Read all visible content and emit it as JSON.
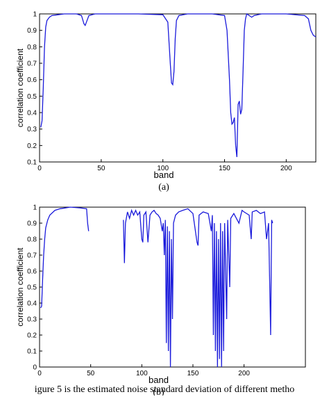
{
  "chart_data": [
    {
      "type": "line",
      "x_label": "band",
      "y_label": "correlation coefficient",
      "panel_label": "(a)",
      "xlim": [
        0,
        224
      ],
      "ylim": [
        0.1,
        1
      ],
      "xticks": [
        0,
        50,
        100,
        150,
        200
      ],
      "yticks": [
        0.1,
        0.2,
        0.3,
        0.4,
        0.5,
        0.6,
        0.7,
        0.8,
        0.9,
        1
      ],
      "x": [
        1,
        2,
        3,
        4,
        5,
        6,
        8,
        10,
        15,
        20,
        30,
        34,
        36,
        37,
        38,
        40,
        45,
        60,
        80,
        100,
        104,
        106,
        107,
        108,
        109,
        110,
        111,
        113,
        120,
        140,
        150,
        152,
        154,
        155,
        156,
        157,
        158,
        159,
        160,
        161,
        162,
        163,
        164,
        165,
        166,
        167,
        168,
        170,
        172,
        174,
        180,
        200,
        215,
        218,
        220,
        222,
        224
      ],
      "series": [
        {
          "color": "#1a1adb",
          "values": [
            0.31,
            0.35,
            0.55,
            0.8,
            0.92,
            0.96,
            0.98,
            0.99,
            0.995,
            1,
            1,
            0.99,
            0.94,
            0.93,
            0.95,
            0.99,
            1,
            1,
            1,
            0.995,
            0.95,
            0.7,
            0.58,
            0.57,
            0.65,
            0.85,
            0.96,
            0.99,
            1,
            1,
            0.99,
            0.9,
            0.6,
            0.4,
            0.33,
            0.34,
            0.37,
            0.2,
            0.13,
            0.45,
            0.47,
            0.39,
            0.42,
            0.65,
            0.9,
            0.97,
            1,
            0.99,
            0.98,
            0.99,
            1,
            1,
            0.99,
            0.97,
            0.9,
            0.87,
            0.86
          ]
        }
      ]
    },
    {
      "type": "line",
      "x_label": "band",
      "y_label": "correlation coefficient",
      "panel_label": "(b)",
      "xlim": [
        0,
        260
      ],
      "ylim": [
        0,
        1
      ],
      "xticks": [
        0,
        50,
        100,
        150,
        200
      ],
      "yticks": [
        0,
        0.1,
        0.2,
        0.3,
        0.4,
        0.5,
        0.6,
        0.7,
        0.8,
        0.9,
        1
      ],
      "x": [
        1,
        2,
        3,
        4,
        5,
        6,
        8,
        10,
        15,
        20,
        30,
        40,
        46,
        47,
        48,
        65,
        82,
        83,
        84,
        86,
        88,
        90,
        92,
        94,
        96,
        98,
        100,
        101,
        102,
        104,
        106,
        108,
        110,
        112,
        114,
        116,
        118,
        120,
        121,
        122,
        123,
        124,
        125,
        126,
        127,
        128,
        129,
        130,
        131,
        133,
        136,
        140,
        145,
        150,
        154,
        155,
        156,
        160,
        165,
        168,
        169,
        170,
        171,
        172,
        173,
        174,
        175,
        176,
        177,
        178,
        179,
        180,
        181,
        183,
        184,
        186,
        187,
        190,
        195,
        198,
        200,
        205,
        207,
        208,
        212,
        216,
        220,
        222,
        224,
        226,
        227,
        228
      ],
      "series": [
        {
          "color": "#1a1adb",
          "values": [
            0.37,
            0.38,
            0.55,
            0.7,
            0.8,
            0.87,
            0.92,
            0.95,
            0.98,
            0.99,
            1,
            0.995,
            0.99,
            0.9,
            0.85,
            null,
            0.92,
            0.65,
            0.9,
            0.97,
            0.93,
            0.98,
            0.95,
            0.98,
            0.95,
            0.97,
            0.8,
            0.78,
            0.95,
            0.97,
            0.78,
            0.95,
            0.97,
            0.98,
            0.96,
            0.95,
            0.93,
            0.85,
            0.9,
            0.7,
            0.92,
            0.15,
            0.88,
            0.1,
            0.85,
            0,
            0.8,
            0.3,
            0.9,
            0.95,
            0.97,
            0.98,
            0.99,
            0.96,
            0.78,
            0.76,
            0.95,
            0.97,
            0.96,
            0.85,
            0.95,
            0.2,
            0.9,
            0.1,
            0.85,
            0,
            0.8,
            0.05,
            0.9,
            0,
            0.85,
            0.1,
            0.9,
            0.3,
            0.92,
            0.5,
            0.93,
            0.96,
            0.9,
            0.98,
            0.97,
            0.95,
            0.8,
            0.97,
            0.98,
            0.96,
            0.97,
            0.8,
            0.9,
            0.2,
            0.92,
            0.9
          ]
        }
      ]
    }
  ],
  "caption": "igure 5 is the estimated noise standard deviation of different metho"
}
